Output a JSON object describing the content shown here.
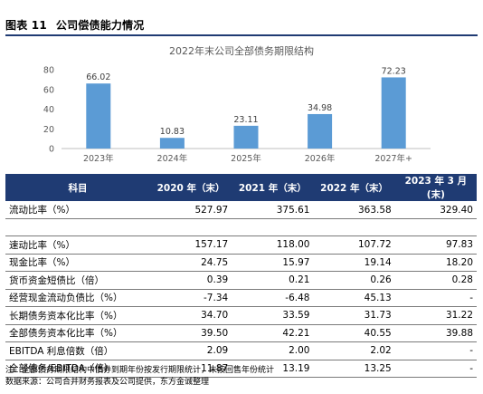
{
  "figure": {
    "number": "图表 11",
    "title": "公司偿债能力情况"
  },
  "chart_data": {
    "type": "bar",
    "title": "2022年末公司全部债务期限结构",
    "categories": [
      "2023年",
      "2024年",
      "2025年",
      "2026年",
      "2027年+"
    ],
    "values": [
      66.02,
      10.83,
      23.11,
      34.98,
      72.23
    ],
    "value_labels": [
      "66.02",
      "10.83",
      "23.11",
      "34.98",
      "72.23"
    ],
    "ylim": [
      0,
      80
    ],
    "yticks": [
      "0",
      "20",
      "40",
      "60",
      "80"
    ],
    "grid": false,
    "bar_color": "#5b9bd5",
    "xlabel": "",
    "ylabel": ""
  },
  "table": {
    "headers": [
      "科目",
      "2020 年（末）",
      "2021 年（末）",
      "2022 年（末）",
      "2023 年 3 月(末)"
    ],
    "rows": [
      [
        "流动比率（%）",
        "527.97",
        "375.61",
        "363.58",
        "329.40"
      ],
      [
        "",
        "",
        "",
        "",
        ""
      ],
      [
        "速动比率（%）",
        "157.17",
        "118.00",
        "107.72",
        "97.83"
      ],
      [
        "现金比率（%）",
        "24.75",
        "15.97",
        "19.14",
        "18.20"
      ],
      [
        "货币资金短债比（倍）",
        "0.39",
        "0.21",
        "0.26",
        "0.28"
      ],
      [
        "经营现金流动负债比（%）",
        "-7.34",
        "-6.48",
        "45.13",
        "-"
      ],
      [
        "长期债务资本化比率（%）",
        "34.70",
        "33.59",
        "31.73",
        "31.22"
      ],
      [
        "全部债务资本化比率（%）",
        "39.50",
        "42.21",
        "40.55",
        "39.88"
      ],
      [
        "EBITDA 利息倍数（倍）",
        "2.09",
        "2.00",
        "2.02",
        "-"
      ],
      [
        "全部债务/EBITDA（倍）",
        "11.87",
        "13.19",
        "13.25",
        "-"
      ]
    ]
  },
  "notes": {
    "note": "注：全部债务期限结构中债券到期年份按发行期限统计，未按回售年份统计",
    "source": "数据来源：公司合并财务报表及公司提供，东方金诚整理"
  },
  "colors": {
    "header_bg": "#1f3b73",
    "bar": "#5b9bd5"
  }
}
